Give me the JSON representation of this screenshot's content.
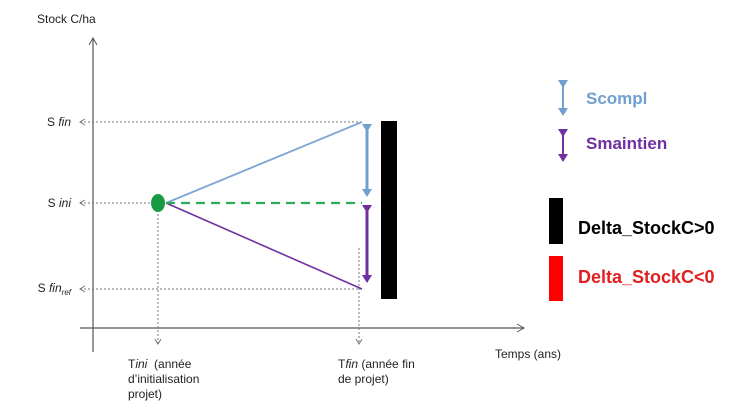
{
  "axes": {
    "y_title": "Stock C/ha",
    "x_title": "Temps (ans)"
  },
  "y_labels": {
    "s_fin": {
      "prefix": "S ",
      "italic": "fin"
    },
    "s_ini": {
      "prefix": "S ",
      "italic": "ini"
    },
    "s_fin_ref": {
      "prefix": "S ",
      "italic": "fin",
      "subscript": "ref"
    }
  },
  "x_labels": {
    "tini": {
      "prefix": "T",
      "italic": "ini",
      "rest_line1": "  (année",
      "line2": "d’initialisation",
      "line3": "projet)"
    },
    "tfin": {
      "prefix": "T",
      "italic": "fin",
      "rest_line1": " (année fin",
      "line2": "de projet)"
    }
  },
  "legend": {
    "scompl": {
      "label": "Scompl",
      "color": "#6fa0cf"
    },
    "smaintien": {
      "label": "Smaintien",
      "color": "#7030a0"
    },
    "delta_pos": {
      "label": "Delta_StockC>0",
      "color": "#000000",
      "text_color": "#000000"
    },
    "delta_neg": {
      "label": "Delta_StockC<0",
      "color": "#ff0000",
      "text_color": "#e02020"
    }
  },
  "colors": {
    "blue_line": "#7ea6d3",
    "purple_line": "#7030a0",
    "green_dashed": "#2eaa5a",
    "green_point": "#1a9a45",
    "axis": "#555555",
    "guide": "#777777"
  }
}
